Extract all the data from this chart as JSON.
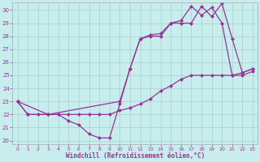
{
  "xlabel": "Windchill (Refroidissement éolien,°C)",
  "bg_color": "#c8eded",
  "line_color": "#993399",
  "grid_color": "#aacccc",
  "xlim_min": -0.5,
  "xlim_max": 23.5,
  "ylim_min": 19.7,
  "ylim_max": 30.6,
  "xticks": [
    0,
    1,
    2,
    3,
    4,
    5,
    6,
    7,
    8,
    9,
    10,
    11,
    12,
    13,
    14,
    15,
    16,
    17,
    18,
    19,
    20,
    21,
    22,
    23
  ],
  "yticks": [
    20,
    21,
    22,
    23,
    24,
    25,
    26,
    27,
    28,
    29,
    30
  ],
  "curve1_x": [
    0,
    1,
    2,
    3,
    4,
    5,
    6,
    7,
    8,
    9,
    10,
    11,
    12,
    13,
    14,
    15,
    16,
    17,
    18,
    19,
    20,
    21,
    22,
    23
  ],
  "curve1_y": [
    23,
    22,
    22,
    22,
    22,
    22,
    22,
    22,
    22,
    22,
    22.3,
    22.5,
    22.8,
    23.2,
    23.8,
    24.2,
    24.7,
    25.0,
    25.0,
    25.0,
    25.0,
    25.0,
    25.0,
    25.3
  ],
  "curve2_x": [
    0,
    1,
    3,
    4,
    5,
    6,
    7,
    8,
    9,
    10,
    11,
    12,
    13,
    14,
    15,
    16,
    17,
    18,
    19,
    20,
    21,
    22,
    23
  ],
  "curve2_y": [
    23,
    22,
    22,
    22,
    21.5,
    21.2,
    20.5,
    20.2,
    20.2,
    22.8,
    25.5,
    27.8,
    28.0,
    28.0,
    29.0,
    29.0,
    29.0,
    30.3,
    29.5,
    30.5,
    27.8,
    25.2,
    25.5
  ],
  "curve3_x": [
    0,
    3,
    10,
    11,
    12,
    13,
    14,
    15,
    16,
    17,
    18,
    19,
    20,
    21,
    22,
    23
  ],
  "curve3_y": [
    23,
    22,
    23,
    25.5,
    27.8,
    28.1,
    28.2,
    29.0,
    29.2,
    30.3,
    29.6,
    30.2,
    29.0,
    25.0,
    25.2,
    25.5
  ]
}
